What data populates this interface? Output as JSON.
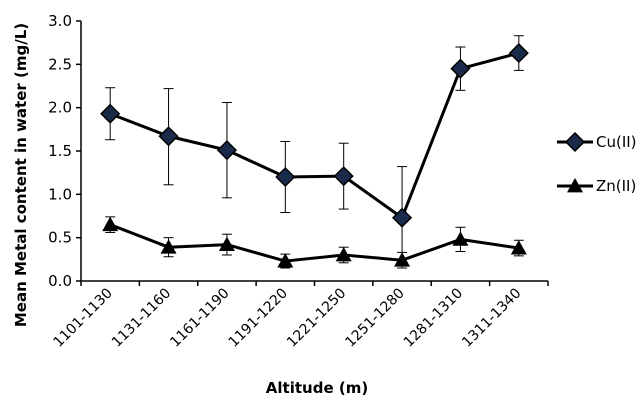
{
  "chart_data": {
    "type": "line",
    "title": "",
    "xlabel": "Altitude (m)",
    "ylabel": "Mean Metal content in water (mg/L)",
    "categories": [
      "1101-1130",
      "1131-1160",
      "1161-1190",
      "1191-1220",
      "1221-1250",
      "1251-1280",
      "1281-1310",
      "1311-1340"
    ],
    "ylim": [
      0,
      3.0
    ],
    "yticks": [
      "0.0",
      "0.5",
      "1.0",
      "1.5",
      "2.0",
      "2.5",
      "3.0"
    ],
    "grid": false,
    "legend": "right",
    "series": [
      {
        "name": "Cu(II)",
        "marker": "diamond",
        "color": "#000000",
        "values": [
          1.93,
          1.67,
          1.51,
          1.2,
          1.21,
          0.73,
          2.45,
          2.63
        ],
        "err_low": [
          1.63,
          1.11,
          0.96,
          0.79,
          0.83,
          0.25,
          2.2,
          2.43
        ],
        "err_high": [
          2.23,
          2.22,
          2.06,
          1.61,
          1.59,
          1.32,
          2.7,
          2.83
        ]
      },
      {
        "name": "Zn(II)",
        "marker": "triangle",
        "color": "#000000",
        "values": [
          0.65,
          0.39,
          0.42,
          0.23,
          0.3,
          0.24,
          0.48,
          0.38
        ],
        "err_low": [
          0.56,
          0.28,
          0.3,
          0.15,
          0.21,
          0.15,
          0.34,
          0.29
        ],
        "err_high": [
          0.74,
          0.5,
          0.54,
          0.31,
          0.39,
          0.33,
          0.62,
          0.47
        ]
      }
    ]
  }
}
